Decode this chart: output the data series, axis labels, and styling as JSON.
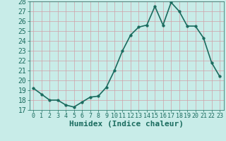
{
  "xlabel": "Humidex (Indice chaleur)",
  "x": [
    0,
    1,
    2,
    3,
    4,
    5,
    6,
    7,
    8,
    9,
    10,
    11,
    12,
    13,
    14,
    15,
    16,
    17,
    18,
    19,
    20,
    21,
    22,
    23
  ],
  "y": [
    19.2,
    18.6,
    18.0,
    18.0,
    17.5,
    17.3,
    17.8,
    18.3,
    18.4,
    19.3,
    21.0,
    23.0,
    24.6,
    25.4,
    25.6,
    27.5,
    25.6,
    27.9,
    27.0,
    25.5,
    25.5,
    24.3,
    21.8,
    20.4
  ],
  "line_color": "#1a6b5e",
  "marker": "o",
  "marker_size": 2.5,
  "background_color": "#c8ece8",
  "grid_color": "#b0d8d0",
  "tick_label_color": "#1a6b5e",
  "ylim": [
    17,
    28
  ],
  "yticks": [
    17,
    18,
    19,
    20,
    21,
    22,
    23,
    24,
    25,
    26,
    27,
    28
  ],
  "xlim": [
    -0.5,
    23.5
  ],
  "xticks": [
    0,
    1,
    2,
    3,
    4,
    5,
    6,
    7,
    8,
    9,
    10,
    11,
    12,
    13,
    14,
    15,
    16,
    17,
    18,
    19,
    20,
    21,
    22,
    23
  ],
  "linewidth": 1.2,
  "xlabel_fontsize": 8,
  "tick_fontsize": 7,
  "xtick_fontsize": 6
}
